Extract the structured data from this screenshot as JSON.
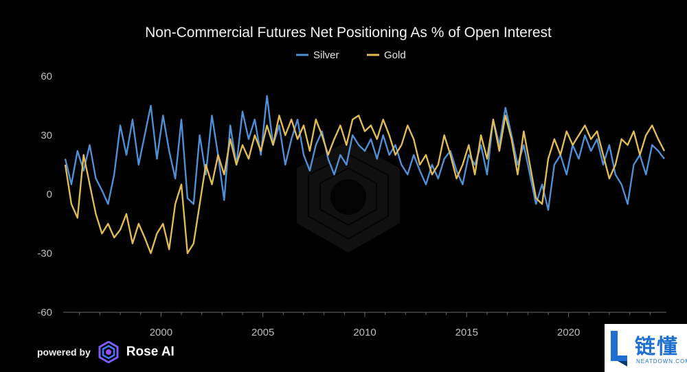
{
  "chart_data": {
    "type": "line",
    "title": "Non-Commercial Futures Net Positioning As % of Open Interest",
    "x_unit": "year",
    "xlim": [
      1995.2,
      2024.8
    ],
    "ylim": [
      -60,
      60
    ],
    "yticks": [
      60,
      30,
      0,
      -30,
      -60
    ],
    "yticklabels": [
      "60",
      "30",
      "0",
      "-30",
      "-60"
    ],
    "xticks": [
      2000,
      2005,
      2010,
      2015,
      2020
    ],
    "xticklabels": [
      "2000",
      "2005",
      "2010",
      "2015",
      "2020"
    ],
    "grid": false,
    "legend_position": "top-center",
    "series": [
      {
        "name": "Silver",
        "color": "#4f8fd6",
        "x": [
          1995.3,
          1995.6,
          1995.9,
          1996.2,
          1996.5,
          1996.8,
          1997.1,
          1997.4,
          1997.7,
          1998.0,
          1998.3,
          1998.6,
          1998.9,
          1999.2,
          1999.5,
          1999.8,
          2000.1,
          2000.4,
          2000.7,
          2001.0,
          2001.3,
          2001.6,
          2001.9,
          2002.2,
          2002.5,
          2002.8,
          2003.1,
          2003.4,
          2003.7,
          2004.0,
          2004.3,
          2004.6,
          2004.9,
          2005.2,
          2005.5,
          2005.8,
          2006.1,
          2006.4,
          2006.7,
          2007.0,
          2007.3,
          2007.6,
          2007.9,
          2008.2,
          2008.5,
          2008.8,
          2009.1,
          2009.4,
          2009.7,
          2010.0,
          2010.3,
          2010.6,
          2010.9,
          2011.2,
          2011.5,
          2011.8,
          2012.1,
          2012.4,
          2012.7,
          2013.0,
          2013.3,
          2013.6,
          2013.9,
          2014.2,
          2014.5,
          2014.8,
          2015.1,
          2015.4,
          2015.7,
          2016.0,
          2016.3,
          2016.6,
          2016.9,
          2017.2,
          2017.5,
          2017.8,
          2018.1,
          2018.4,
          2018.7,
          2019.0,
          2019.3,
          2019.6,
          2019.9,
          2020.2,
          2020.5,
          2020.8,
          2021.1,
          2021.4,
          2021.7,
          2022.0,
          2022.3,
          2022.6,
          2022.9,
          2023.2,
          2023.5,
          2023.8,
          2024.1,
          2024.4,
          2024.7
        ],
        "values": [
          18,
          5,
          22,
          12,
          25,
          8,
          2,
          -5,
          10,
          35,
          20,
          38,
          15,
          30,
          45,
          18,
          40,
          22,
          8,
          38,
          -2,
          -5,
          30,
          10,
          40,
          20,
          -3,
          35,
          15,
          42,
          28,
          38,
          20,
          50,
          25,
          35,
          15,
          28,
          38,
          20,
          12,
          25,
          32,
          18,
          10,
          20,
          15,
          30,
          25,
          22,
          28,
          18,
          30,
          20,
          25,
          15,
          10,
          20,
          12,
          5,
          15,
          8,
          18,
          22,
          12,
          5,
          20,
          15,
          25,
          10,
          38,
          25,
          44,
          30,
          15,
          25,
          10,
          -5,
          5,
          -8,
          15,
          20,
          10,
          25,
          18,
          30,
          22,
          28,
          15,
          25,
          10,
          5,
          -5,
          15,
          20,
          10,
          25,
          22,
          18
        ]
      },
      {
        "name": "Gold",
        "color": "#e0bb57",
        "x": [
          1995.3,
          1995.6,
          1995.9,
          1996.2,
          1996.5,
          1996.8,
          1997.1,
          1997.4,
          1997.7,
          1998.0,
          1998.3,
          1998.6,
          1998.9,
          1999.2,
          1999.5,
          1999.8,
          2000.1,
          2000.4,
          2000.7,
          2001.0,
          2001.3,
          2001.6,
          2001.9,
          2002.2,
          2002.5,
          2002.8,
          2003.1,
          2003.4,
          2003.7,
          2004.0,
          2004.3,
          2004.6,
          2004.9,
          2005.2,
          2005.5,
          2005.8,
          2006.1,
          2006.4,
          2006.7,
          2007.0,
          2007.3,
          2007.6,
          2007.9,
          2008.2,
          2008.5,
          2008.8,
          2009.1,
          2009.4,
          2009.7,
          2010.0,
          2010.3,
          2010.6,
          2010.9,
          2011.2,
          2011.5,
          2011.8,
          2012.1,
          2012.4,
          2012.7,
          2013.0,
          2013.3,
          2013.6,
          2013.9,
          2014.2,
          2014.5,
          2014.8,
          2015.1,
          2015.4,
          2015.7,
          2016.0,
          2016.3,
          2016.6,
          2016.9,
          2017.2,
          2017.5,
          2017.8,
          2018.1,
          2018.4,
          2018.7,
          2019.0,
          2019.3,
          2019.6,
          2019.9,
          2020.2,
          2020.5,
          2020.8,
          2021.1,
          2021.4,
          2021.7,
          2022.0,
          2022.3,
          2022.6,
          2022.9,
          2023.2,
          2023.5,
          2023.8,
          2024.1,
          2024.4,
          2024.7
        ],
        "values": [
          15,
          -5,
          -12,
          20,
          5,
          -10,
          -20,
          -15,
          -22,
          -18,
          -10,
          -25,
          -15,
          -22,
          -30,
          -20,
          -15,
          -28,
          -5,
          5,
          -30,
          -25,
          -5,
          15,
          5,
          20,
          10,
          28,
          15,
          25,
          18,
          30,
          22,
          35,
          25,
          40,
          30,
          38,
          28,
          35,
          22,
          38,
          30,
          20,
          28,
          35,
          25,
          38,
          40,
          32,
          35,
          28,
          38,
          30,
          20,
          25,
          35,
          28,
          15,
          20,
          10,
          15,
          30,
          20,
          8,
          15,
          25,
          10,
          30,
          18,
          38,
          22,
          40,
          28,
          10,
          32,
          15,
          -2,
          -5,
          18,
          28,
          20,
          32,
          25,
          30,
          35,
          28,
          32,
          20,
          8,
          15,
          28,
          25,
          32,
          20,
          30,
          35,
          28,
          22
        ]
      }
    ]
  },
  "footer": {
    "powered_by": "powered by",
    "brand": "Rose AI"
  },
  "watermark": {
    "cn": "链懂",
    "en": "NEATDOWN.COM"
  }
}
